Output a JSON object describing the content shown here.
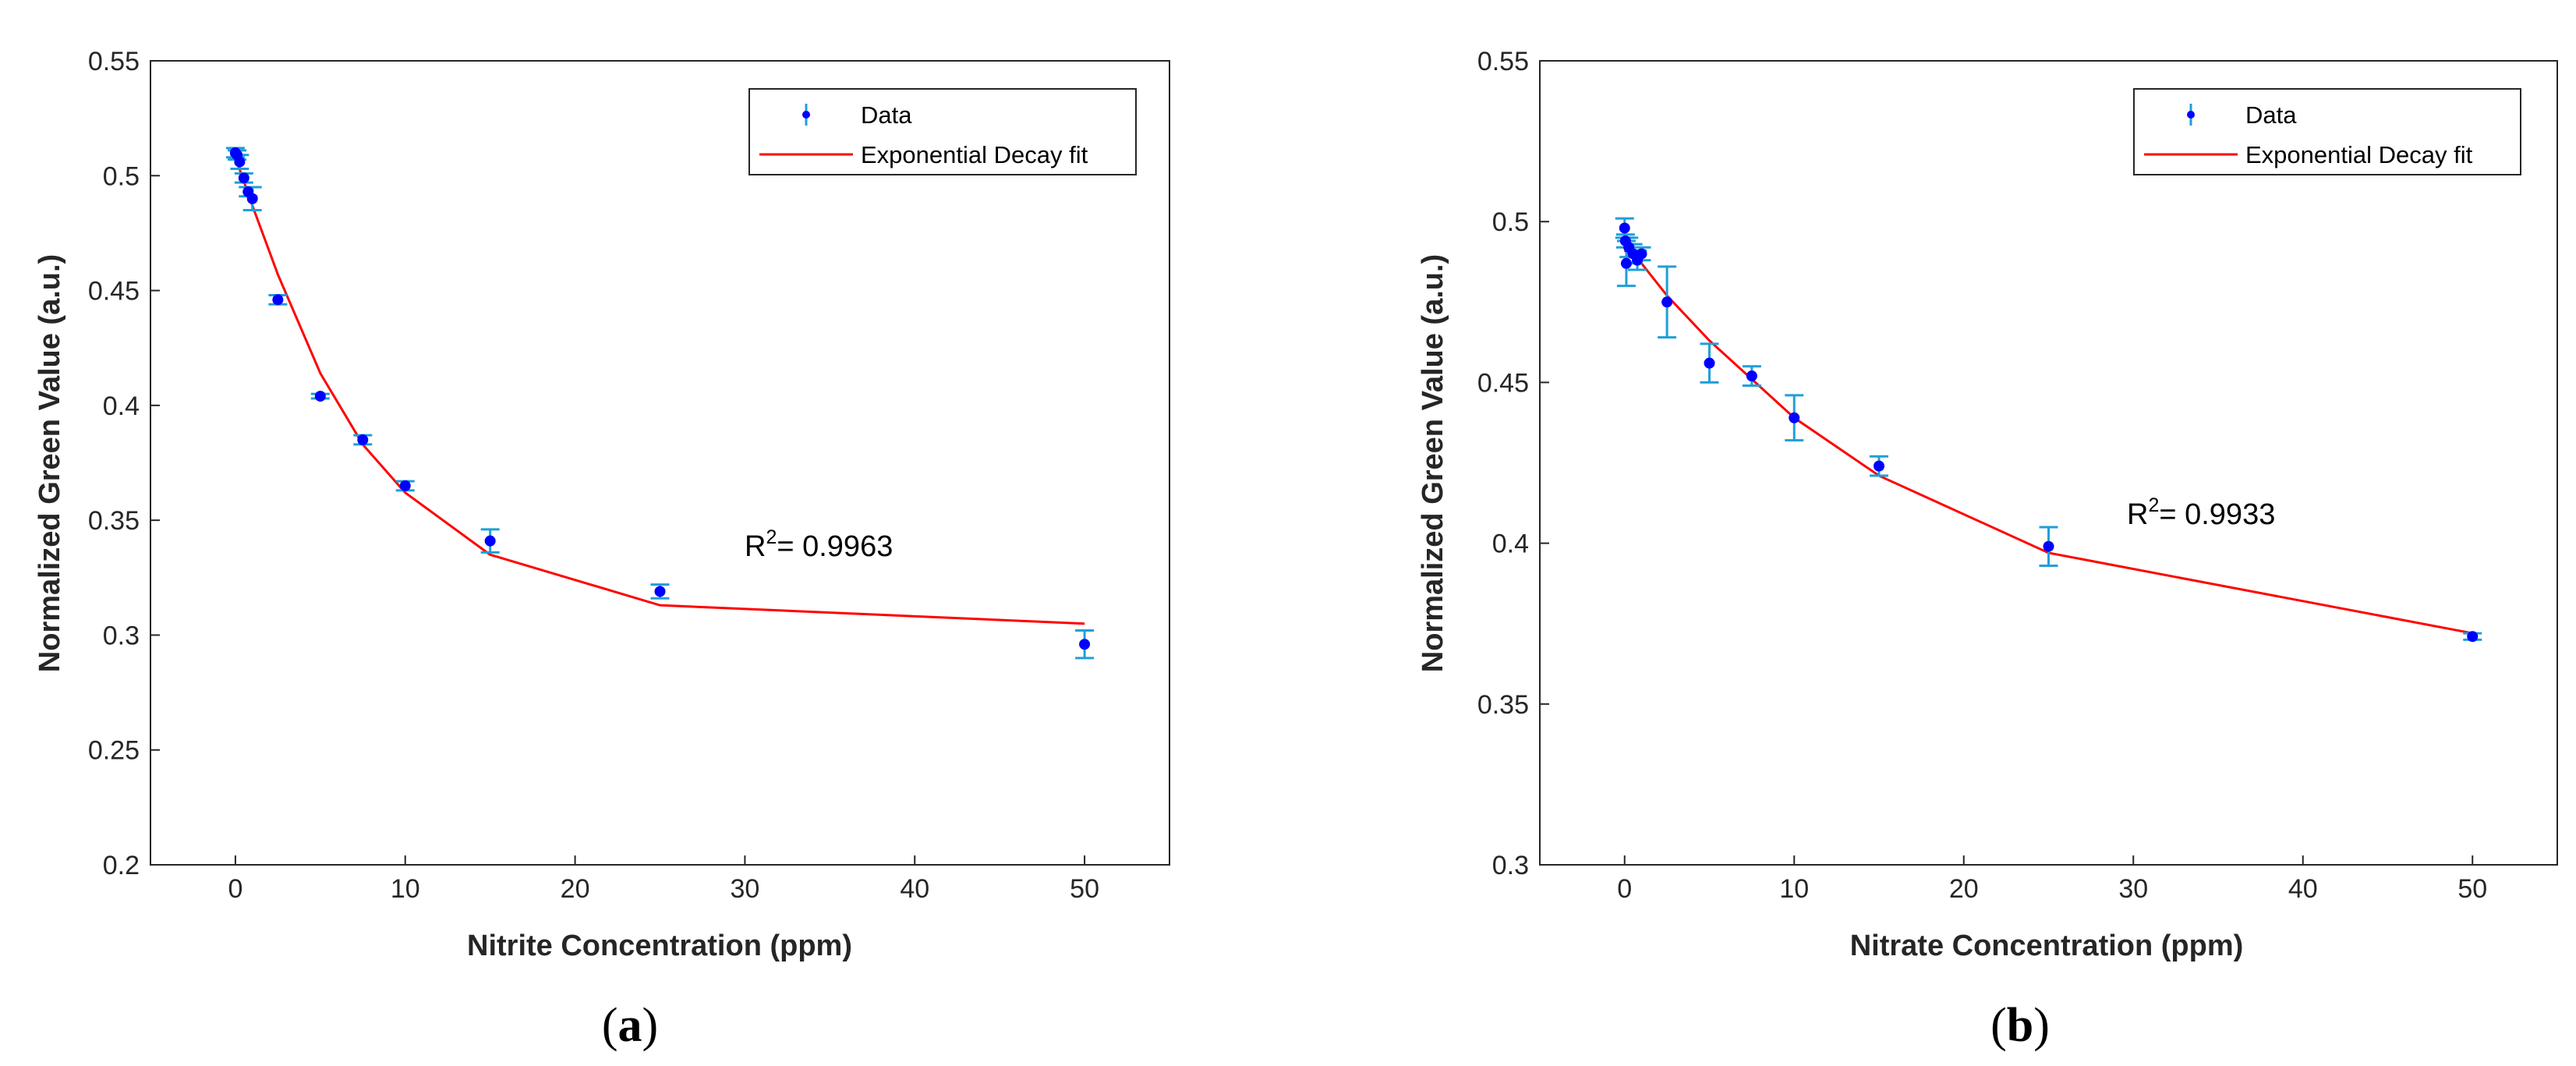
{
  "colors": {
    "marker": "#0000ff",
    "errorbar": "#1f9fd8",
    "fit": "#ff0000",
    "axis": "#262626"
  },
  "chart_data": [
    {
      "panel_label": "a",
      "type": "scatter",
      "xlabel": "Nitrite Concentration (ppm)",
      "ylabel": "Normalized Green Value (a.u.)",
      "xlim": [
        -5,
        55
      ],
      "ylim": [
        0.2,
        0.55
      ],
      "xticks": [
        0,
        10,
        20,
        30,
        40,
        50
      ],
      "xtick_labels": [
        "0",
        "10",
        "20",
        "30",
        "40",
        "50"
      ],
      "yticks": [
        0.2,
        0.25,
        0.3,
        0.35,
        0.4,
        0.45,
        0.5,
        0.55
      ],
      "ytick_labels": [
        "0.2",
        "0.25",
        "0.3",
        "0.35",
        "0.4",
        "0.45",
        "0.5",
        "0.55"
      ],
      "legend": {
        "position": "top-right",
        "entries": [
          "Data",
          "Exponential Decay fit"
        ]
      },
      "annotation": {
        "prefix": "R",
        "sup": "2",
        "suffix": "= 0.9963",
        "anchor": [
          30,
          0.34
        ]
      },
      "series": [
        {
          "name": "Data",
          "x": [
            0,
            0.1,
            0.25,
            0.5,
            0.75,
            1,
            2.5,
            5,
            7.5,
            10,
            15,
            25,
            50
          ],
          "y": [
            0.51,
            0.509,
            0.506,
            0.499,
            0.493,
            0.49,
            0.446,
            0.404,
            0.385,
            0.365,
            0.341,
            0.319,
            0.296
          ],
          "err": [
            0.002,
            0.002,
            0.003,
            0.002,
            0.002,
            0.005,
            0.002,
            0.001,
            0.002,
            0.002,
            0.005,
            0.003,
            0.006
          ]
        },
        {
          "name": "Exponential Decay fit",
          "x": [
            0,
            1,
            2.5,
            5,
            7.5,
            10,
            15,
            25,
            50
          ],
          "y": [
            0.508,
            0.487,
            0.457,
            0.414,
            0.383,
            0.362,
            0.335,
            0.313,
            0.305
          ]
        }
      ]
    },
    {
      "panel_label": "b",
      "type": "scatter",
      "xlabel": "Nitrate Concentration (ppm)",
      "ylabel": "Normalized Green Value (a.u.)",
      "xlim": [
        -5,
        55
      ],
      "ylim": [
        0.3,
        0.55
      ],
      "xticks": [
        0,
        10,
        20,
        30,
        40,
        50
      ],
      "xtick_labels": [
        "0",
        "10",
        "20",
        "30",
        "40",
        "50"
      ],
      "yticks": [
        0.3,
        0.35,
        0.4,
        0.45,
        0.5,
        0.55
      ],
      "ytick_labels": [
        "0.3",
        "0.35",
        "0.4",
        "0.45",
        "0.5",
        "0.55"
      ],
      "legend": {
        "position": "top-right",
        "entries": [
          "Data",
          "Exponential Decay fit"
        ]
      },
      "annotation": {
        "prefix": "R",
        "sup": "2",
        "suffix": "= 0.9933",
        "anchor": [
          30,
          0.407
        ]
      },
      "series": [
        {
          "name": "Data",
          "x": [
            0,
            0.05,
            0.1,
            0.25,
            0.5,
            0.75,
            1,
            2.5,
            5,
            7.5,
            10,
            15,
            25,
            50
          ],
          "y": [
            0.498,
            0.494,
            0.487,
            0.492,
            0.49,
            0.488,
            0.49,
            0.475,
            0.456,
            0.452,
            0.439,
            0.424,
            0.399,
            0.371
          ],
          "err": [
            0.003,
            0.002,
            0.007,
            0.003,
            0.003,
            0.003,
            0.002,
            0.011,
            0.006,
            0.003,
            0.007,
            0.003,
            0.006,
            0.001
          ]
        },
        {
          "name": "Exponential Decay fit",
          "x": [
            0,
            1,
            2.5,
            5,
            7.5,
            10,
            15,
            25,
            50
          ],
          "y": [
            0.491,
            0.487,
            0.477,
            0.463,
            0.451,
            0.439,
            0.421,
            0.397,
            0.372
          ]
        }
      ]
    }
  ]
}
